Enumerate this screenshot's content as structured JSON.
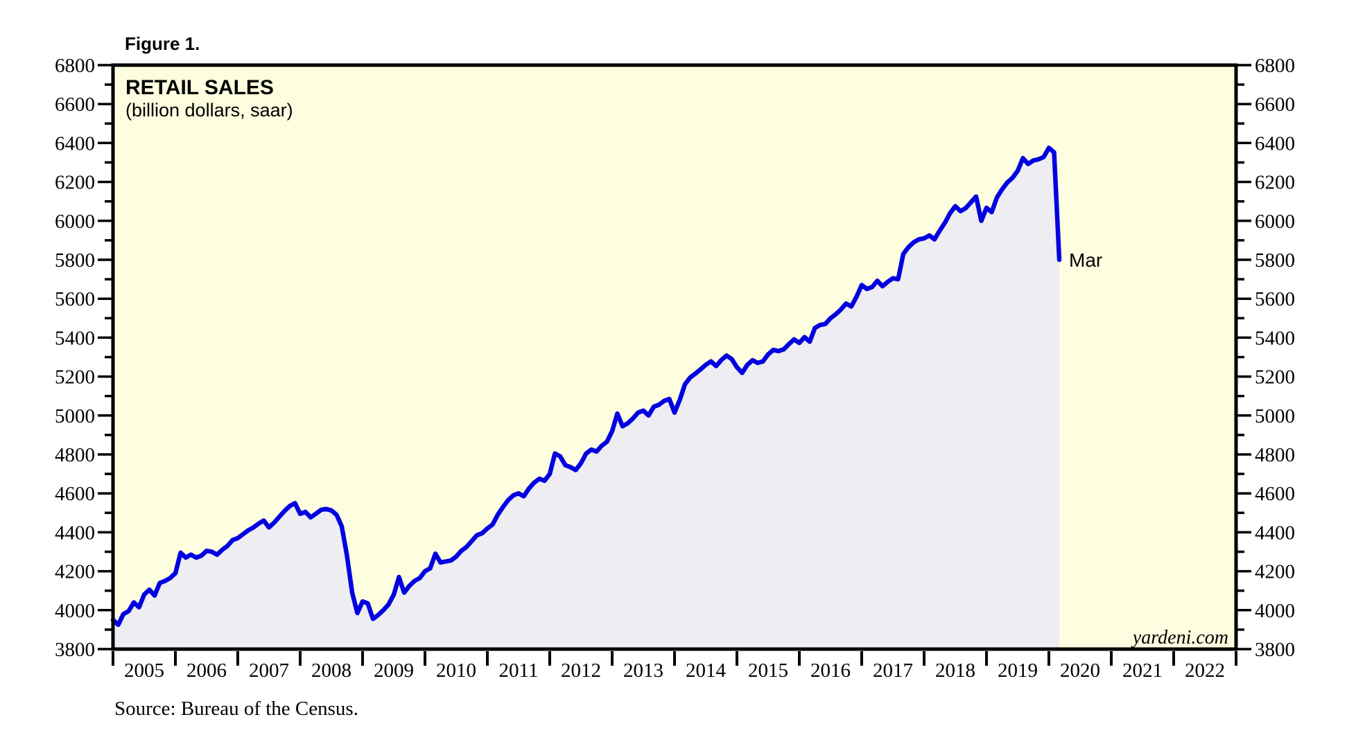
{
  "figure_label": "Figure 1.",
  "source_note": "Source: Bureau of the Census.",
  "watermark": "yardeni.com",
  "colors": {
    "page_bg": "#ffffff",
    "plot_bg": "#fdfddf",
    "area_fill": "#ededf2",
    "line": "#0000e0",
    "annotation": "#0000e0",
    "axis": "#000000"
  },
  "chart_data": {
    "type": "area",
    "title": "RETAIL SALES",
    "subtitle": "(billion dollars, saar)",
    "xlabel": "",
    "ylabel": "",
    "grid": false,
    "legend_position": "none",
    "ylim": [
      3800,
      6800
    ],
    "y_major_step": 200,
    "y_minor_step": 100,
    "y_tick_labels": [
      "3800",
      "4000",
      "4200",
      "4400",
      "4600",
      "4800",
      "5000",
      "5200",
      "5400",
      "5600",
      "5800",
      "6000",
      "6200",
      "6400",
      "6600",
      "6800"
    ],
    "x_range": [
      2005,
      2023
    ],
    "x_axis_years": [
      "2005",
      "2006",
      "2007",
      "2008",
      "2009",
      "2010",
      "2011",
      "2012",
      "2013",
      "2014",
      "2015",
      "2016",
      "2017",
      "2018",
      "2019",
      "2020",
      "2021",
      "2022"
    ],
    "annotation": {
      "label": "Mar",
      "x_year": 2020.167,
      "value": 5800
    },
    "series": [
      {
        "name": "Retail Sales",
        "frequency": "monthly",
        "start": "2005-01",
        "end": "2020-03",
        "x_start_year": 2005.0,
        "values": [
          3950,
          3925,
          3980,
          3995,
          4040,
          4015,
          4080,
          4105,
          4075,
          4140,
          4150,
          4165,
          4190,
          4295,
          4270,
          4285,
          4270,
          4280,
          4305,
          4300,
          4285,
          4310,
          4330,
          4360,
          4370,
          4390,
          4410,
          4425,
          4445,
          4460,
          4425,
          4450,
          4480,
          4510,
          4535,
          4550,
          4495,
          4505,
          4477,
          4495,
          4515,
          4520,
          4512,
          4490,
          4430,
          4280,
          4090,
          3985,
          4045,
          4035,
          3955,
          3975,
          4000,
          4030,
          4080,
          4170,
          4090,
          4125,
          4150,
          4165,
          4200,
          4215,
          4290,
          4245,
          4250,
          4255,
          4275,
          4305,
          4325,
          4355,
          4385,
          4395,
          4420,
          4440,
          4490,
          4530,
          4565,
          4590,
          4600,
          4585,
          4625,
          4655,
          4675,
          4665,
          4700,
          4805,
          4790,
          4745,
          4735,
          4720,
          4755,
          4805,
          4825,
          4815,
          4845,
          4865,
          4920,
          5010,
          4945,
          4960,
          4985,
          5015,
          5025,
          5000,
          5045,
          5055,
          5075,
          5085,
          5015,
          5080,
          5160,
          5195,
          5215,
          5237,
          5260,
          5278,
          5254,
          5285,
          5308,
          5290,
          5248,
          5219,
          5260,
          5284,
          5270,
          5278,
          5314,
          5337,
          5331,
          5340,
          5367,
          5391,
          5373,
          5403,
          5379,
          5450,
          5465,
          5470,
          5500,
          5520,
          5545,
          5575,
          5560,
          5610,
          5670,
          5650,
          5660,
          5692,
          5664,
          5687,
          5705,
          5700,
          5830,
          5865,
          5890,
          5905,
          5910,
          5925,
          5905,
          5950,
          5990,
          6040,
          6075,
          6050,
          6065,
          6095,
          6125,
          6000,
          6067,
          6045,
          6120,
          6162,
          6197,
          6221,
          6257,
          6322,
          6292,
          6310,
          6316,
          6328,
          6375,
          6352,
          5800
        ]
      }
    ]
  }
}
